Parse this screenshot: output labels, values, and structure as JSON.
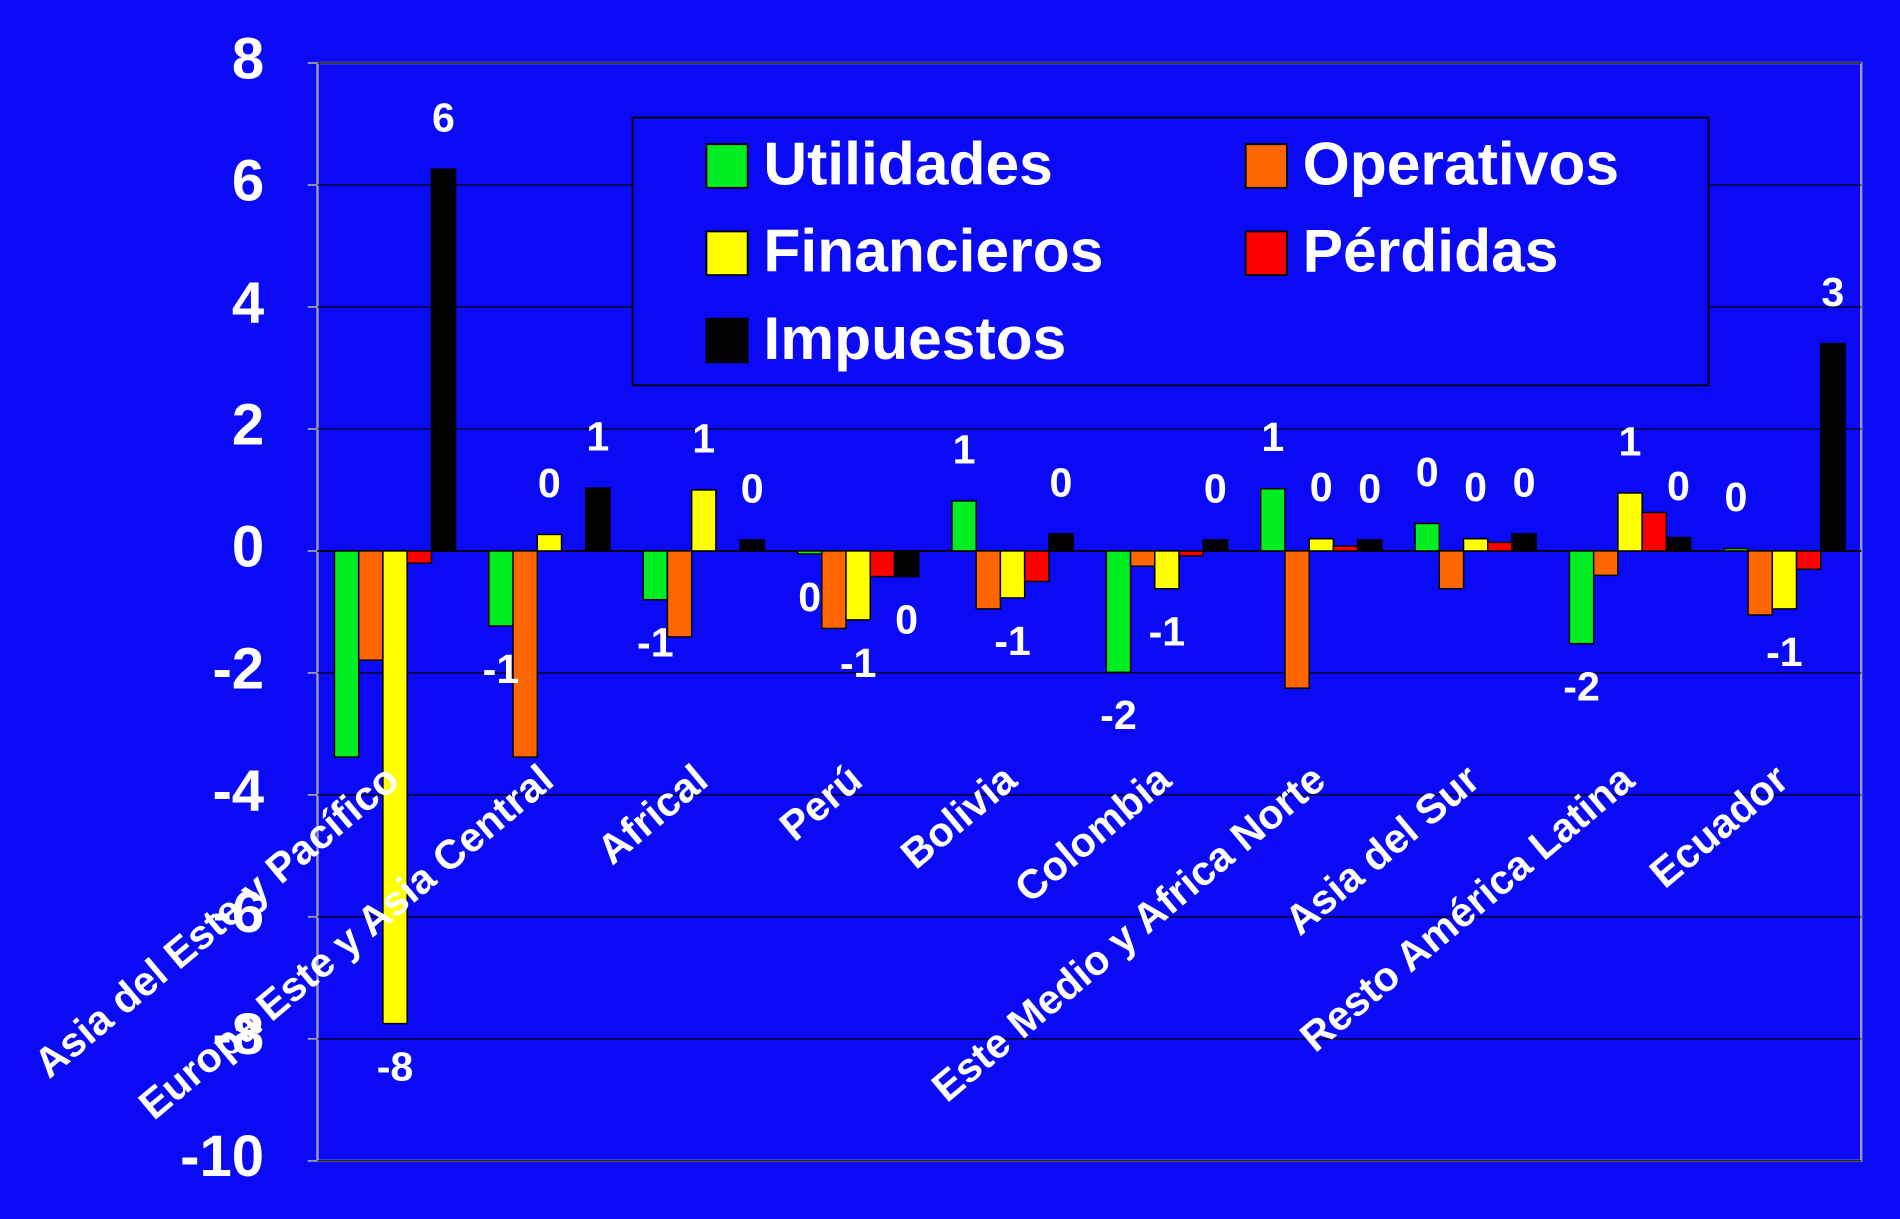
{
  "chart_data": {
    "type": "bar",
    "categories": [
      "Asia del Este y Pacífico",
      "Europa Este y Asia Central",
      "Africal",
      "Perú",
      "Bolivia",
      "Colombia",
      "Este Medio y Africa Norte",
      "Asia del Sur",
      "Resto América Latina",
      "Ecuador"
    ],
    "series": [
      {
        "name": "Utilidades",
        "color": "#00ee22",
        "values": [
          -3.38,
          -1.23,
          -0.8,
          -0.05,
          0.82,
          -1.99,
          1.02,
          0.45,
          -1.52,
          0.04
        ],
        "value_labels": [
          null,
          "-1",
          "-1",
          "0",
          "1",
          "-2",
          "1",
          "0",
          "-2",
          "0"
        ]
      },
      {
        "name": "Operativos",
        "color": "#ff6600",
        "values": [
          -1.79,
          -3.38,
          -1.41,
          -1.27,
          -0.95,
          -0.25,
          -2.25,
          -0.62,
          -0.4,
          -1.05
        ],
        "value_labels": [
          null,
          null,
          null,
          null,
          null,
          null,
          null,
          null,
          null,
          null
        ]
      },
      {
        "name": "Financieros",
        "color": "#ffff00",
        "values": [
          -7.75,
          0.27,
          1.0,
          -1.13,
          -0.77,
          -0.62,
          0.2,
          0.2,
          0.95,
          -0.95
        ],
        "value_labels": [
          "-8",
          "0",
          "1",
          "-1",
          "-1",
          "-1",
          "0",
          "0",
          "1",
          "-1"
        ]
      },
      {
        "name": "Pérdidas",
        "color": "#ff0000",
        "values": [
          -0.2,
          0.0,
          0.0,
          -0.42,
          -0.5,
          -0.08,
          0.08,
          0.14,
          0.63,
          -0.3
        ],
        "value_labels": [
          null,
          null,
          null,
          null,
          null,
          null,
          null,
          null,
          null,
          null
        ]
      },
      {
        "name": "Impuestos",
        "color": "#000000",
        "values": [
          6.26,
          1.03,
          0.18,
          -0.42,
          0.28,
          0.18,
          0.18,
          0.28,
          0.22,
          3.4
        ],
        "value_labels": [
          "6",
          "1",
          "0",
          "0",
          "0",
          "0",
          "0",
          "0",
          "0",
          "3"
        ]
      }
    ],
    "ylim": [
      -10,
      8
    ],
    "yticks": [
      -10,
      -8,
      -6,
      -4,
      -2,
      0,
      2,
      4,
      6,
      8
    ],
    "grid": true
  }
}
